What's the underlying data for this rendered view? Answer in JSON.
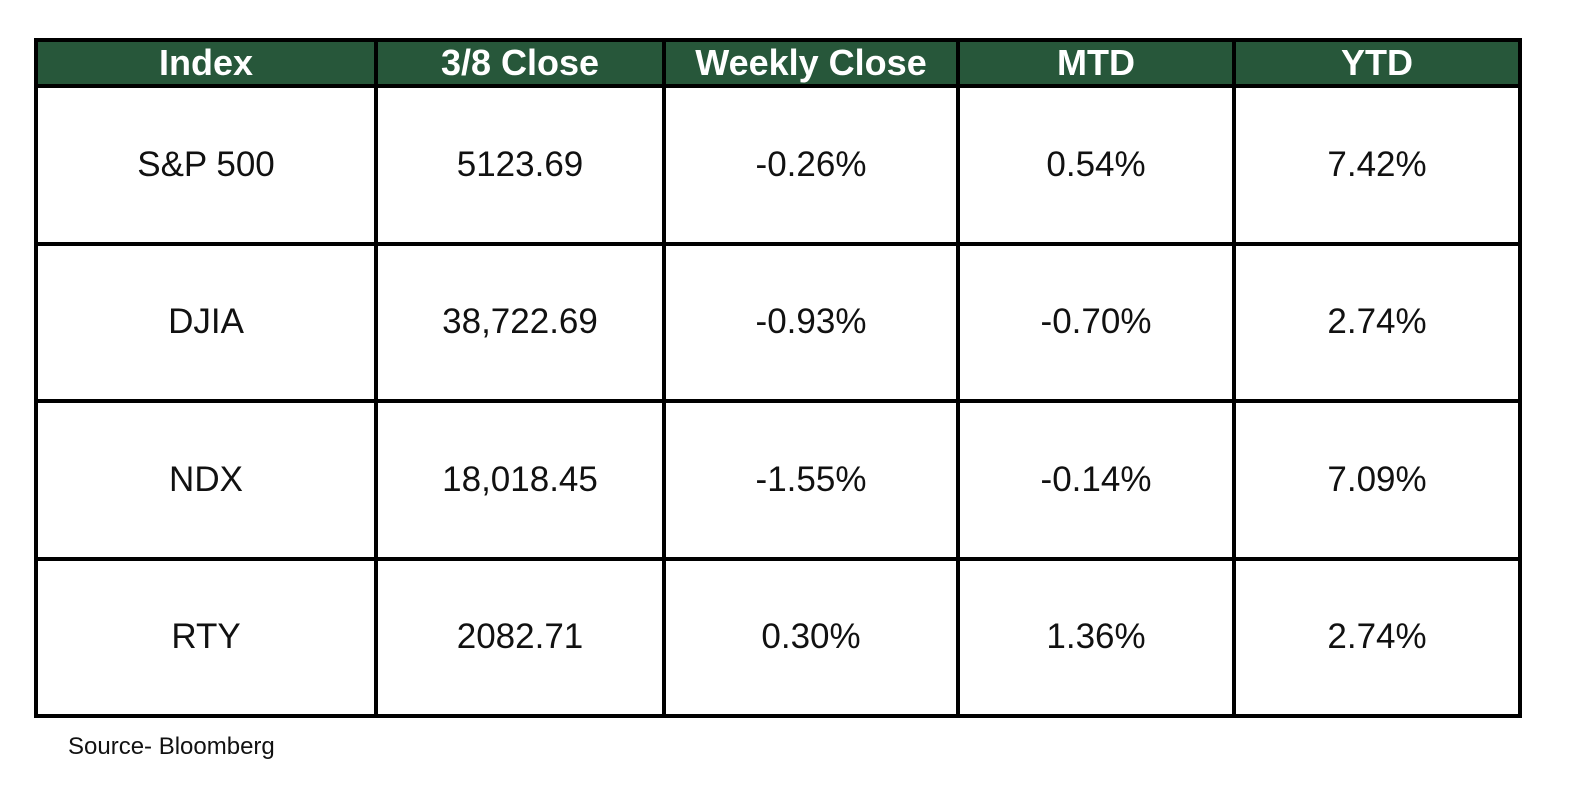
{
  "chart_data": {
    "type": "table",
    "columns": [
      "Index",
      "3/8 Close",
      "Weekly Close",
      "MTD",
      "YTD"
    ],
    "rows": [
      [
        "S&P 500",
        "5123.69",
        "-0.26%",
        "0.54%",
        "7.42%"
      ],
      [
        "DJIA",
        "38,722.69",
        "-0.93%",
        "-0.70%",
        "2.74%"
      ],
      [
        "NDX",
        "18,018.45",
        "-1.55%",
        "-0.14%",
        "7.09%"
      ],
      [
        "RTY",
        "2082.71",
        "0.30%",
        "1.36%",
        "2.74%"
      ]
    ],
    "source": "Source- Bloomberg"
  },
  "colors": {
    "header_background": "#27573a",
    "header_text": "#ffffff",
    "border": "#000000"
  }
}
